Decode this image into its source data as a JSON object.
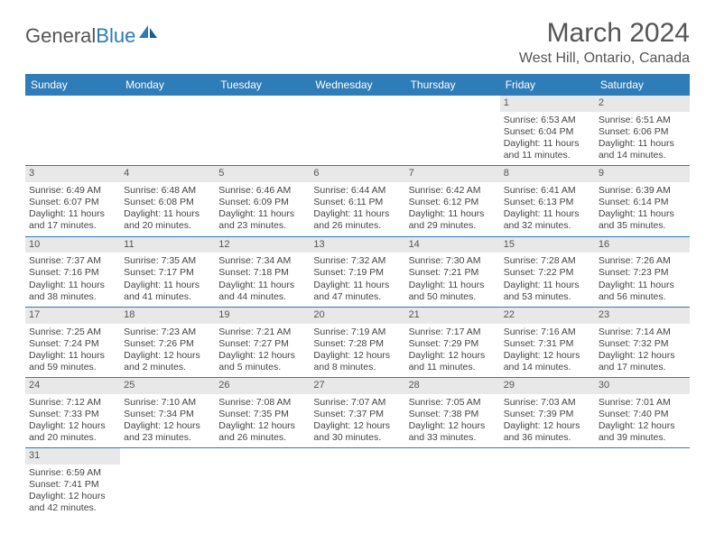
{
  "logo": {
    "general": "General",
    "blue": "Blue"
  },
  "title": "March 2024",
  "location": "West Hill, Ontario, Canada",
  "colors": {
    "header_bg": "#2e7cb8",
    "header_text": "#ffffff",
    "daynum_bg": "#e8e8e8",
    "border": "#2e7cb8",
    "text": "#444444",
    "title_text": "#555555"
  },
  "day_names": [
    "Sunday",
    "Monday",
    "Tuesday",
    "Wednesday",
    "Thursday",
    "Friday",
    "Saturday"
  ],
  "weeks": [
    [
      null,
      null,
      null,
      null,
      null,
      {
        "n": "1",
        "sr": "Sunrise: 6:53 AM",
        "ss": "Sunset: 6:04 PM",
        "dl": "Daylight: 11 hours and 11 minutes."
      },
      {
        "n": "2",
        "sr": "Sunrise: 6:51 AM",
        "ss": "Sunset: 6:06 PM",
        "dl": "Daylight: 11 hours and 14 minutes."
      }
    ],
    [
      {
        "n": "3",
        "sr": "Sunrise: 6:49 AM",
        "ss": "Sunset: 6:07 PM",
        "dl": "Daylight: 11 hours and 17 minutes."
      },
      {
        "n": "4",
        "sr": "Sunrise: 6:48 AM",
        "ss": "Sunset: 6:08 PM",
        "dl": "Daylight: 11 hours and 20 minutes."
      },
      {
        "n": "5",
        "sr": "Sunrise: 6:46 AM",
        "ss": "Sunset: 6:09 PM",
        "dl": "Daylight: 11 hours and 23 minutes."
      },
      {
        "n": "6",
        "sr": "Sunrise: 6:44 AM",
        "ss": "Sunset: 6:11 PM",
        "dl": "Daylight: 11 hours and 26 minutes."
      },
      {
        "n": "7",
        "sr": "Sunrise: 6:42 AM",
        "ss": "Sunset: 6:12 PM",
        "dl": "Daylight: 11 hours and 29 minutes."
      },
      {
        "n": "8",
        "sr": "Sunrise: 6:41 AM",
        "ss": "Sunset: 6:13 PM",
        "dl": "Daylight: 11 hours and 32 minutes."
      },
      {
        "n": "9",
        "sr": "Sunrise: 6:39 AM",
        "ss": "Sunset: 6:14 PM",
        "dl": "Daylight: 11 hours and 35 minutes."
      }
    ],
    [
      {
        "n": "10",
        "sr": "Sunrise: 7:37 AM",
        "ss": "Sunset: 7:16 PM",
        "dl": "Daylight: 11 hours and 38 minutes."
      },
      {
        "n": "11",
        "sr": "Sunrise: 7:35 AM",
        "ss": "Sunset: 7:17 PM",
        "dl": "Daylight: 11 hours and 41 minutes."
      },
      {
        "n": "12",
        "sr": "Sunrise: 7:34 AM",
        "ss": "Sunset: 7:18 PM",
        "dl": "Daylight: 11 hours and 44 minutes."
      },
      {
        "n": "13",
        "sr": "Sunrise: 7:32 AM",
        "ss": "Sunset: 7:19 PM",
        "dl": "Daylight: 11 hours and 47 minutes."
      },
      {
        "n": "14",
        "sr": "Sunrise: 7:30 AM",
        "ss": "Sunset: 7:21 PM",
        "dl": "Daylight: 11 hours and 50 minutes."
      },
      {
        "n": "15",
        "sr": "Sunrise: 7:28 AM",
        "ss": "Sunset: 7:22 PM",
        "dl": "Daylight: 11 hours and 53 minutes."
      },
      {
        "n": "16",
        "sr": "Sunrise: 7:26 AM",
        "ss": "Sunset: 7:23 PM",
        "dl": "Daylight: 11 hours and 56 minutes."
      }
    ],
    [
      {
        "n": "17",
        "sr": "Sunrise: 7:25 AM",
        "ss": "Sunset: 7:24 PM",
        "dl": "Daylight: 11 hours and 59 minutes."
      },
      {
        "n": "18",
        "sr": "Sunrise: 7:23 AM",
        "ss": "Sunset: 7:26 PM",
        "dl": "Daylight: 12 hours and 2 minutes."
      },
      {
        "n": "19",
        "sr": "Sunrise: 7:21 AM",
        "ss": "Sunset: 7:27 PM",
        "dl": "Daylight: 12 hours and 5 minutes."
      },
      {
        "n": "20",
        "sr": "Sunrise: 7:19 AM",
        "ss": "Sunset: 7:28 PM",
        "dl": "Daylight: 12 hours and 8 minutes."
      },
      {
        "n": "21",
        "sr": "Sunrise: 7:17 AM",
        "ss": "Sunset: 7:29 PM",
        "dl": "Daylight: 12 hours and 11 minutes."
      },
      {
        "n": "22",
        "sr": "Sunrise: 7:16 AM",
        "ss": "Sunset: 7:31 PM",
        "dl": "Daylight: 12 hours and 14 minutes."
      },
      {
        "n": "23",
        "sr": "Sunrise: 7:14 AM",
        "ss": "Sunset: 7:32 PM",
        "dl": "Daylight: 12 hours and 17 minutes."
      }
    ],
    [
      {
        "n": "24",
        "sr": "Sunrise: 7:12 AM",
        "ss": "Sunset: 7:33 PM",
        "dl": "Daylight: 12 hours and 20 minutes."
      },
      {
        "n": "25",
        "sr": "Sunrise: 7:10 AM",
        "ss": "Sunset: 7:34 PM",
        "dl": "Daylight: 12 hours and 23 minutes."
      },
      {
        "n": "26",
        "sr": "Sunrise: 7:08 AM",
        "ss": "Sunset: 7:35 PM",
        "dl": "Daylight: 12 hours and 26 minutes."
      },
      {
        "n": "27",
        "sr": "Sunrise: 7:07 AM",
        "ss": "Sunset: 7:37 PM",
        "dl": "Daylight: 12 hours and 30 minutes."
      },
      {
        "n": "28",
        "sr": "Sunrise: 7:05 AM",
        "ss": "Sunset: 7:38 PM",
        "dl": "Daylight: 12 hours and 33 minutes."
      },
      {
        "n": "29",
        "sr": "Sunrise: 7:03 AM",
        "ss": "Sunset: 7:39 PM",
        "dl": "Daylight: 12 hours and 36 minutes."
      },
      {
        "n": "30",
        "sr": "Sunrise: 7:01 AM",
        "ss": "Sunset: 7:40 PM",
        "dl": "Daylight: 12 hours and 39 minutes."
      }
    ],
    [
      {
        "n": "31",
        "sr": "Sunrise: 6:59 AM",
        "ss": "Sunset: 7:41 PM",
        "dl": "Daylight: 12 hours and 42 minutes."
      },
      null,
      null,
      null,
      null,
      null,
      null
    ]
  ]
}
